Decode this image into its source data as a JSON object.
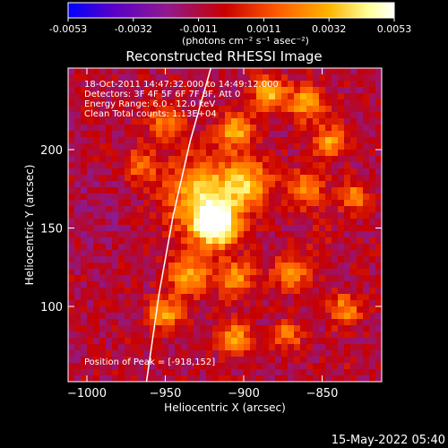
{
  "colors": {
    "background": "#000000",
    "text": "#ffffff",
    "limb": "#ffffff",
    "colormap": [
      "#0000ff",
      "#5a00c8",
      "#8e1a8e",
      "#c80000",
      "#ff5a00",
      "#ffb400",
      "#ffff96",
      "#ffffff"
    ]
  },
  "colorbar": {
    "ticks": [
      "-0.0053",
      "-0.0032",
      "-0.0011",
      "0.0011",
      "0.0032",
      "0.0053"
    ],
    "unit_label": "(photons cm⁻² s⁻¹ asec⁻²)"
  },
  "annotations": {
    "time_range": "18-Oct-2011 14:47:32.000 to 14:49:12.000",
    "detectors": "Detectors: 3F 4F 5F 6F 7F 8F, Att 0",
    "energy": "Energy Range: 6.0 - 12.0 keV",
    "clean": "Clean    Total counts: 1.13E+04",
    "peak": "Position of Peak = [-918,152]"
  },
  "footer": {
    "date": "15-May-2022 05:40"
  },
  "chart_data": {
    "type": "heatmap",
    "title": "Reconstructed RHESSI Image",
    "xlabel": "Heliocentric X (arcsec)",
    "ylabel": "Heliocentric Y (arcsec)",
    "xlim": [
      -1012,
      -812
    ],
    "ylim": [
      52,
      252
    ],
    "xticks": [
      {
        "value": -1000,
        "label": "−1000"
      },
      {
        "value": -950,
        "label": "−950"
      },
      {
        "value": -900,
        "label": "−900"
      },
      {
        "value": -850,
        "label": "−850"
      }
    ],
    "yticks": [
      {
        "value": 100,
        "label": "100"
      },
      {
        "value": 150,
        "label": "150"
      },
      {
        "value": 200,
        "label": "200"
      }
    ],
    "colorbar_range": [
      -0.0053,
      0.0053
    ],
    "peak": {
      "x": -918,
      "y": 152,
      "value": 0.0053
    },
    "limb_curve": [
      {
        "x": -921,
        "y": 252
      },
      {
        "x": -934,
        "y": 206
      },
      {
        "x": -945,
        "y": 158
      },
      {
        "x": -954,
        "y": 108
      },
      {
        "x": -962,
        "y": 52
      }
    ],
    "features": [
      {
        "x": -918,
        "y": 152,
        "value": 0.0053,
        "sigma": 9
      },
      {
        "x": -925,
        "y": 170,
        "value": 0.003,
        "sigma": 16
      },
      {
        "x": -897,
        "y": 178,
        "value": 0.0022,
        "sigma": 10
      },
      {
        "x": -905,
        "y": 212,
        "value": 0.0022,
        "sigma": 8
      },
      {
        "x": -884,
        "y": 236,
        "value": 0.0026,
        "sigma": 7
      },
      {
        "x": -860,
        "y": 230,
        "value": 0.002,
        "sigma": 8
      },
      {
        "x": -845,
        "y": 205,
        "value": 0.0018,
        "sigma": 7
      },
      {
        "x": -860,
        "y": 175,
        "value": 0.0016,
        "sigma": 8
      },
      {
        "x": -830,
        "y": 170,
        "value": 0.0018,
        "sigma": 6
      },
      {
        "x": -935,
        "y": 120,
        "value": 0.002,
        "sigma": 9
      },
      {
        "x": -905,
        "y": 118,
        "value": 0.0018,
        "sigma": 8
      },
      {
        "x": -870,
        "y": 122,
        "value": 0.0016,
        "sigma": 8
      },
      {
        "x": -835,
        "y": 98,
        "value": 0.0016,
        "sigma": 7
      },
      {
        "x": -950,
        "y": 95,
        "value": 0.0024,
        "sigma": 7
      },
      {
        "x": -905,
        "y": 80,
        "value": 0.0018,
        "sigma": 7
      },
      {
        "x": -872,
        "y": 82,
        "value": 0.0014,
        "sigma": 6
      },
      {
        "x": -950,
        "y": 218,
        "value": 0.0014,
        "sigma": 8
      },
      {
        "x": -965,
        "y": 190,
        "value": 0.0008,
        "sigma": 8
      },
      {
        "x": -990,
        "y": 230,
        "value": -0.0012,
        "sigma": 12
      },
      {
        "x": -995,
        "y": 160,
        "value": -0.0018,
        "sigma": 14
      },
      {
        "x": -990,
        "y": 110,
        "value": -0.0014,
        "sigma": 12
      },
      {
        "x": -980,
        "y": 70,
        "value": -0.0012,
        "sigma": 10
      },
      {
        "x": -850,
        "y": 145,
        "value": -0.0008,
        "sigma": 8
      },
      {
        "x": -835,
        "y": 65,
        "value": -0.001,
        "sigma": 8
      }
    ]
  }
}
